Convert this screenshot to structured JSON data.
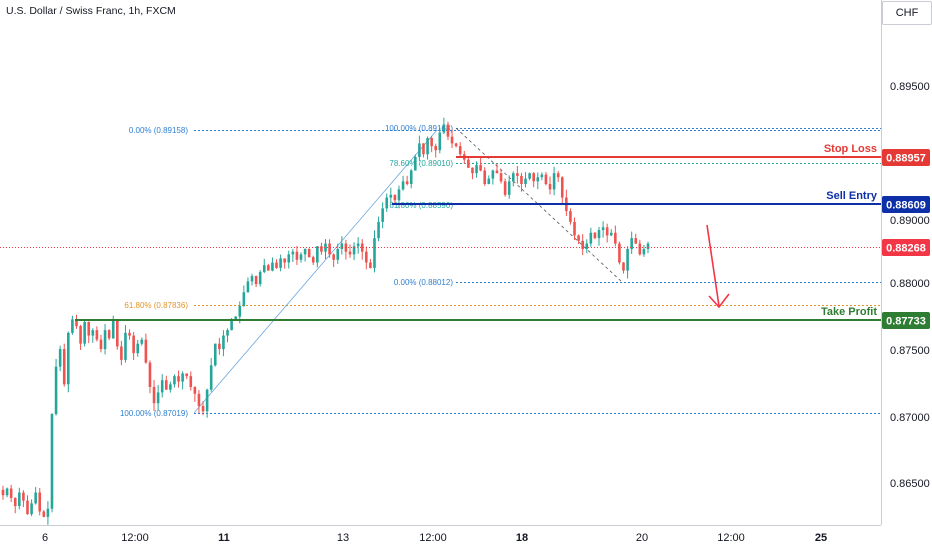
{
  "title": "U.S. Dollar / Swiss Franc, 1h, FXCM",
  "currency": "CHF",
  "colors": {
    "up": "#26a69a",
    "down": "#ef5350",
    "stop_loss": "#e53935",
    "sell_entry": "#0d2fa8",
    "take_profit": "#2e7d32",
    "current": "#f23645",
    "fib_blue": "#2f7fd1",
    "fib_orange": "#e0962c",
    "fib_teal": "#22a7a0"
  },
  "chart_data": {
    "type": "candlestick",
    "y_ticks": [
      "0.89500",
      "0.89000",
      "0.88500",
      "0.88000",
      "0.87500",
      "0.87000",
      "0.86500"
    ],
    "x_ticks": [
      "6",
      "12:00",
      "11",
      "13",
      "12:00",
      "18",
      "20",
      "12:00",
      "25"
    ],
    "ylim": [
      0.8618,
      0.9006
    ],
    "levels": {
      "stop_loss": {
        "label": "Stop Loss",
        "value": "0.88957"
      },
      "sell_entry": {
        "label": "Sell Entry",
        "value": "0.88609"
      },
      "current": {
        "value": "0.88268"
      },
      "take_profit": {
        "label": "Take Profit",
        "value": "0.87733"
      }
    },
    "fib_labels": {
      "a0": "0.00% (0.89158)",
      "a618": "61.80% (0.87836)",
      "a100": "100.00% (0.87019)",
      "b100": "100.00% (0.89168)",
      "b786": "78.60% (0.89010)",
      "b618": "61.80% (0.88590)",
      "b0": "0.00% (0.88012)"
    },
    "price_path": [
      0.864,
      0.8645,
      0.8638,
      0.8632,
      0.8642,
      0.8636,
      0.8626,
      0.8634,
      0.8642,
      0.8628,
      0.8624,
      0.863,
      0.87,
      0.8735,
      0.8748,
      0.8722,
      0.876,
      0.877,
      0.8765,
      0.8752,
      0.8768,
      0.8758,
      0.8762,
      0.8755,
      0.8748,
      0.8762,
      0.8756,
      0.877,
      0.875,
      0.874,
      0.876,
      0.8758,
      0.8745,
      0.8752,
      0.8755,
      0.8738,
      0.872,
      0.8708,
      0.8716,
      0.8725,
      0.8718,
      0.8722,
      0.8728,
      0.8724,
      0.873,
      0.8728,
      0.872,
      0.8715,
      0.8706,
      0.8702,
      0.8718,
      0.8736,
      0.8752,
      0.8748,
      0.8758,
      0.8762,
      0.877,
      0.8772,
      0.878,
      0.879,
      0.8798,
      0.8802,
      0.8796,
      0.8805,
      0.881,
      0.8806,
      0.8812,
      0.8808,
      0.8815,
      0.8812,
      0.8818,
      0.882,
      0.8814,
      0.8818,
      0.8822,
      0.8816,
      0.8812,
      0.8824,
      0.882,
      0.8826,
      0.8818,
      0.8814,
      0.8822,
      0.8826,
      0.882,
      0.8818,
      0.8824,
      0.8826,
      0.882,
      0.8812,
      0.8808,
      0.883,
      0.8842,
      0.8852,
      0.886,
      0.8862,
      0.8858,
      0.8866,
      0.8872,
      0.887,
      0.888,
      0.889,
      0.89,
      0.8892,
      0.8904,
      0.8898,
      0.8895,
      0.8908,
      0.8914,
      0.8905,
      0.89,
      0.8898,
      0.8892,
      0.8888,
      0.8882,
      0.8878,
      0.8884,
      0.888,
      0.887,
      0.8874,
      0.888,
      0.8878,
      0.8872,
      0.8862,
      0.8872,
      0.8878,
      0.8876,
      0.887,
      0.8874,
      0.8878,
      0.8872,
      0.8875,
      0.8877,
      0.887,
      0.8866,
      0.8878,
      0.8875,
      0.886,
      0.885,
      0.8842,
      0.8832,
      0.8828,
      0.8822,
      0.8826,
      0.8834,
      0.883,
      0.8836,
      0.8838,
      0.8832,
      0.8834,
      0.8826,
      0.8812,
      0.8806,
      0.8822,
      0.883,
      0.8826,
      0.8818,
      0.8822,
      0.8826
    ]
  }
}
